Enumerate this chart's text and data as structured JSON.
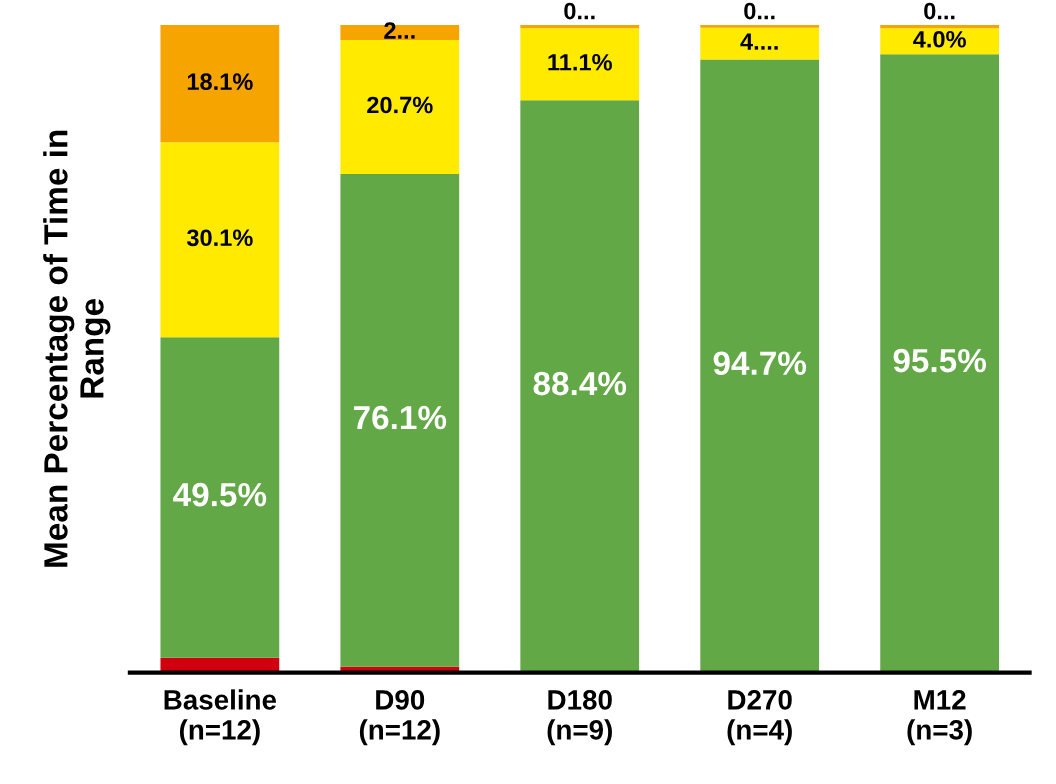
{
  "chart_data": {
    "type": "bar",
    "stacked": true,
    "ylabel": "Mean Percentage of Time in\nRange",
    "categories": [
      "Baseline\n(n=12)",
      "D90\n(n=12)",
      "D180\n(n=9)",
      "D270\n(n=4)",
      "M12\n(n=3)"
    ],
    "series": [
      {
        "color": "#d0000f",
        "values": [
          2.3,
          0.9,
          0,
          0,
          0
        ],
        "value_labels": [
          null,
          null,
          null,
          null,
          null
        ]
      },
      {
        "color": "#62a846",
        "values": [
          49.5,
          76.1,
          88.4,
          94.7,
          95.5
        ],
        "value_labels": [
          "49.5%",
          "76.1%",
          "88.4%",
          "94.7%",
          "95.5%"
        ]
      },
      {
        "color": "#ffea00",
        "values": [
          30.1,
          20.7,
          11.1,
          4.9,
          4.0
        ],
        "value_labels": [
          "30.1%",
          "20.7%",
          "11.1%",
          "4....",
          "4.0%"
        ]
      },
      {
        "color": "#f5a400",
        "values": [
          18.1,
          2.3,
          0.5,
          0.4,
          0.5
        ],
        "value_labels": [
          "18.1%",
          "2...",
          "0...",
          "0...",
          "0..."
        ]
      }
    ],
    "ylim": [
      0,
      100
    ],
    "tick_labels": "x",
    "grid": false,
    "legend": false
  }
}
